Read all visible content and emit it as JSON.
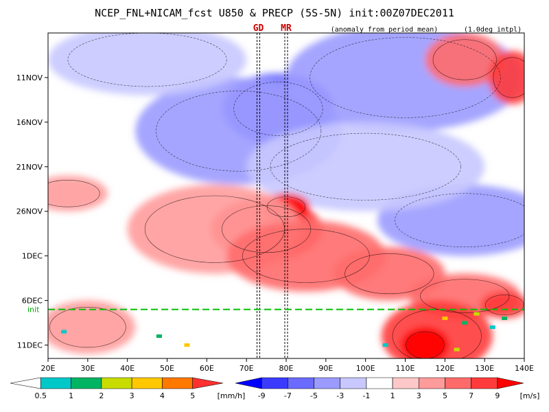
{
  "title": "NCEP_FNL+NICAM_fcst U850 & PRECP (5S-5N) init:00Z07DEC2011",
  "subtitle_anomaly": "(anomaly from period mean)",
  "subtitle_interp": "(1.0deg intpl)",
  "chart_data": {
    "type": "heatmap",
    "title": "NCEP_FNL+NICAM_fcst U850 & PRECP (5S-5N) init:00Z07DEC2011",
    "x_axis": {
      "range_deg_east": [
        20,
        140
      ],
      "ticks": [
        "20E",
        "30E",
        "40E",
        "50E",
        "60E",
        "70E",
        "80E",
        "90E",
        "100E",
        "110E",
        "120E",
        "130E",
        "140E"
      ],
      "tick_values": [
        20,
        30,
        40,
        50,
        60,
        70,
        80,
        90,
        100,
        110,
        120,
        130,
        140
      ]
    },
    "y_axis": {
      "range_days_from_6NOV": [
        0,
        36.5
      ],
      "ticks": [
        "11NOV",
        "16NOV",
        "21NOV",
        "26NOV",
        "1DEC",
        "6DEC",
        "11DEC"
      ],
      "tick_days": [
        5,
        10,
        15,
        20,
        25,
        30,
        35
      ]
    },
    "markers": [
      {
        "label": "GD",
        "lon": 73
      },
      {
        "label": "MR",
        "lon": 80
      }
    ],
    "init_line": {
      "label": "init",
      "day": 31
    },
    "u850_anomaly_blobs": [
      {
        "lon": 78,
        "day": 8.5,
        "rlon": 14,
        "rday": 4.0,
        "value": -7
      },
      {
        "lon": 68,
        "day": 11,
        "rlon": 26,
        "rday": 6.0,
        "value": -4
      },
      {
        "lon": 110,
        "day": 5,
        "rlon": 30,
        "rday": 6.0,
        "value": -4
      },
      {
        "lon": 125,
        "day": 21,
        "rlon": 22,
        "rday": 4.0,
        "value": -5
      },
      {
        "lon": 100,
        "day": 15,
        "rlon": 30,
        "rday": 5.0,
        "value": -3
      },
      {
        "lon": 45,
        "day": 3,
        "rlon": 25,
        "rday": 4.0,
        "value": -3
      },
      {
        "lon": 125,
        "day": 3,
        "rlon": 10,
        "rday": 3.0,
        "value": 5
      },
      {
        "lon": 137,
        "day": 5,
        "rlon": 6,
        "rday": 3.0,
        "value": 7
      },
      {
        "lon": 75,
        "day": 22,
        "rlon": 14,
        "rday": 3.5,
        "value": 7
      },
      {
        "lon": 80,
        "day": 19.5,
        "rlon": 6,
        "rday": 1.5,
        "value": 9
      },
      {
        "lon": 62,
        "day": 22,
        "rlon": 22,
        "rday": 5.0,
        "value": 4
      },
      {
        "lon": 85,
        "day": 25,
        "rlon": 20,
        "rday": 4.0,
        "value": 5
      },
      {
        "lon": 106,
        "day": 27,
        "rlon": 14,
        "rday": 3.0,
        "value": 6
      },
      {
        "lon": 125,
        "day": 29.5,
        "rlon": 14,
        "rday": 2.5,
        "value": 5
      },
      {
        "lon": 135,
        "day": 30.5,
        "rlon": 6,
        "rday": 1.5,
        "value": 7
      },
      {
        "lon": 118,
        "day": 34,
        "rlon": 14,
        "rday": 4.0,
        "value": 7
      },
      {
        "lon": 115,
        "day": 35,
        "rlon": 6,
        "rday": 2.0,
        "value": 9
      },
      {
        "lon": 30,
        "day": 33,
        "rlon": 12,
        "rday": 3.0,
        "value": 3
      },
      {
        "lon": 25,
        "day": 18,
        "rlon": 10,
        "rday": 2.0,
        "value": 3
      }
    ],
    "precip_points": [
      {
        "lon": 120,
        "day": 32,
        "value": 3
      },
      {
        "lon": 125,
        "day": 32.5,
        "value": 1
      },
      {
        "lon": 128,
        "day": 31.5,
        "value": 2
      },
      {
        "lon": 132,
        "day": 33,
        "value": 0.5
      },
      {
        "lon": 55,
        "day": 35,
        "value": 3
      },
      {
        "lon": 48,
        "day": 34,
        "value": 1
      },
      {
        "lon": 24,
        "day": 33.5,
        "value": 0.5
      },
      {
        "lon": 123,
        "day": 35.5,
        "value": 2
      },
      {
        "lon": 135,
        "day": 32,
        "value": 1
      },
      {
        "lon": 105,
        "day": 35,
        "value": 0.5
      }
    ],
    "colorbar_precip": {
      "unit": "[mm/h]",
      "labels": [
        "0.5",
        "1",
        "2",
        "3",
        "4",
        "5"
      ],
      "colors": [
        "#ffffff",
        "#00c8c8",
        "#00b464",
        "#c8dc00",
        "#ffc800",
        "#ff7800",
        "#ff3030"
      ]
    },
    "colorbar_u850": {
      "unit": "[m/s]",
      "labels": [
        "-9",
        "-7",
        "-5",
        "-3",
        "-1",
        "1",
        "3",
        "5",
        "7",
        "9"
      ],
      "colors": [
        "#0000ff",
        "#3b3bff",
        "#6b6bff",
        "#9b9bff",
        "#c8c8ff",
        "#ffffff",
        "#ffc8c8",
        "#ff9b9b",
        "#ff6b6b",
        "#ff3b3b",
        "#ff0000"
      ]
    }
  }
}
